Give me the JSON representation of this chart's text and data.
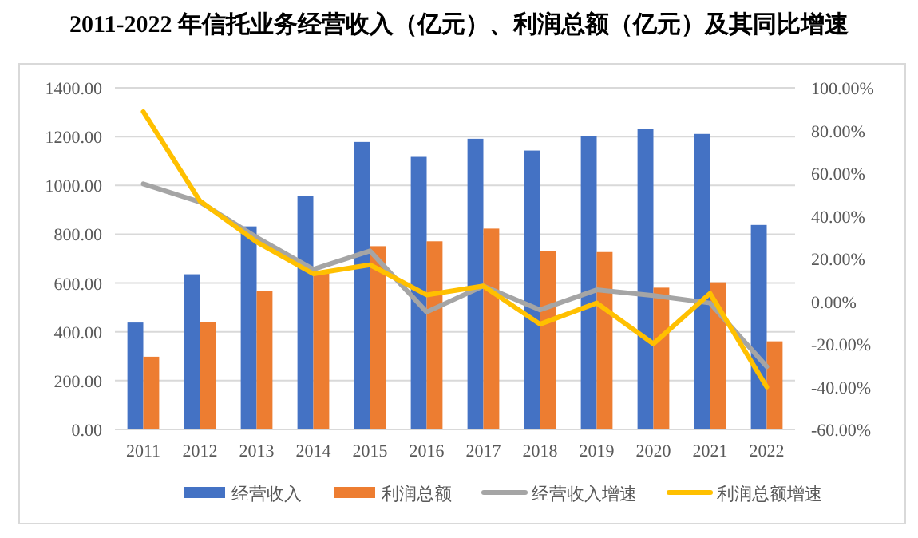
{
  "chart_data": {
    "type": "bar",
    "title": "2011-2022 年信托业务经营收入（亿元）、利润总额（亿元）及其同比增速",
    "categories": [
      "2011",
      "2012",
      "2013",
      "2014",
      "2015",
      "2016",
      "2017",
      "2018",
      "2019",
      "2020",
      "2021",
      "2022"
    ],
    "series": [
      {
        "name": "经营收入",
        "color": "#4472c4",
        "values": [
          438,
          636,
          832,
          956,
          1178,
          1117,
          1191,
          1143,
          1202,
          1230,
          1211,
          838
        ]
      },
      {
        "name": "利润总额",
        "color": "#ed7d31",
        "values": [
          298,
          440,
          568,
          640,
          751,
          771,
          823,
          731,
          727,
          581,
          603,
          361
        ]
      },
      {
        "name": "经营收入增速",
        "type": "line",
        "axis": "y2",
        "color": "#a5a5a5",
        "values": [
          55,
          46.5,
          30,
          15,
          23.6,
          -5,
          7.2,
          -4,
          5.4,
          2.7,
          -0.8,
          -30.6
        ]
      },
      {
        "name": "利润总额增速",
        "type": "line",
        "axis": "y2",
        "color": "#ffc000",
        "values": [
          88.8,
          47,
          27.8,
          12.9,
          17.1,
          3,
          7.2,
          -10.7,
          -0.8,
          -19.9,
          3.7,
          -40.1
        ]
      }
    ],
    "ylim": [
      0,
      1400
    ],
    "yticks": [
      {
        "value": 0,
        "label": "0.00"
      },
      {
        "value": 200,
        "label": "200.00"
      },
      {
        "value": 400,
        "label": "400.00"
      },
      {
        "value": 600,
        "label": "600.00"
      },
      {
        "value": 800,
        "label": "800.00"
      },
      {
        "value": 1000,
        "label": "1000.00"
      },
      {
        "value": 1200,
        "label": "1200.00"
      },
      {
        "value": 1400,
        "label": "1400.00"
      }
    ],
    "y2lim": [
      -60,
      100
    ],
    "y2ticks": [
      {
        "value": -60,
        "label": "-60.00%"
      },
      {
        "value": -40,
        "label": "-40.00%"
      },
      {
        "value": -20,
        "label": "-20.00%"
      },
      {
        "value": 0,
        "label": "0.00%"
      },
      {
        "value": 20,
        "label": "20.00%"
      },
      {
        "value": 40,
        "label": "40.00%"
      },
      {
        "value": 60,
        "label": "60.00%"
      },
      {
        "value": 80,
        "label": "80.00%"
      },
      {
        "value": 100,
        "label": "100.00%"
      }
    ],
    "grid": "y",
    "legend": "bottom",
    "marker": "none",
    "line_style": "solid"
  }
}
